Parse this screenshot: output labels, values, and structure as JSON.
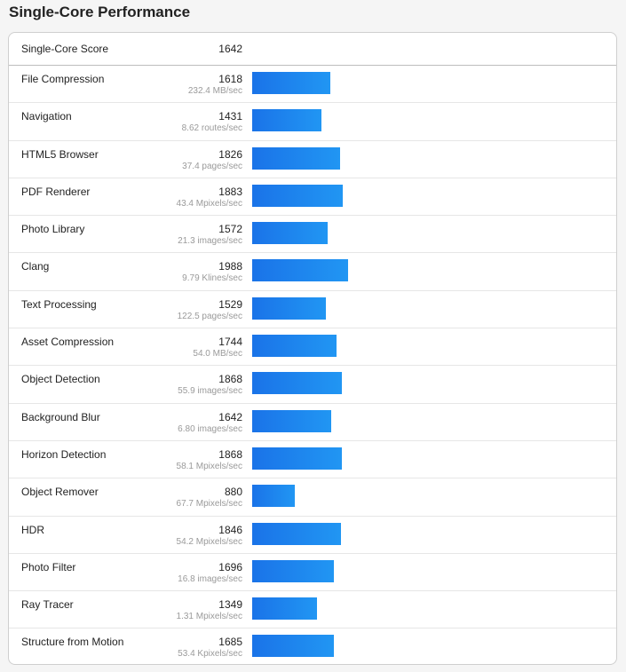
{
  "title": "Single-Core Performance",
  "score": {
    "label": "Single-Core Score",
    "value": "1642"
  },
  "bar_scale_max": 1988,
  "accent_color": "#1a73e8",
  "rows": [
    {
      "name": "File Compression",
      "value": "1618",
      "rate": "232.4 MB/sec",
      "score": 1618
    },
    {
      "name": "Navigation",
      "value": "1431",
      "rate": "8.62 routes/sec",
      "score": 1431
    },
    {
      "name": "HTML5 Browser",
      "value": "1826",
      "rate": "37.4 pages/sec",
      "score": 1826
    },
    {
      "name": "PDF Renderer",
      "value": "1883",
      "rate": "43.4 Mpixels/sec",
      "score": 1883
    },
    {
      "name": "Photo Library",
      "value": "1572",
      "rate": "21.3 images/sec",
      "score": 1572
    },
    {
      "name": "Clang",
      "value": "1988",
      "rate": "9.79 Klines/sec",
      "score": 1988
    },
    {
      "name": "Text Processing",
      "value": "1529",
      "rate": "122.5 pages/sec",
      "score": 1529
    },
    {
      "name": "Asset Compression",
      "value": "1744",
      "rate": "54.0 MB/sec",
      "score": 1744
    },
    {
      "name": "Object Detection",
      "value": "1868",
      "rate": "55.9 images/sec",
      "score": 1868
    },
    {
      "name": "Background Blur",
      "value": "1642",
      "rate": "6.80 images/sec",
      "score": 1642
    },
    {
      "name": "Horizon Detection",
      "value": "1868",
      "rate": "58.1 Mpixels/sec",
      "score": 1868
    },
    {
      "name": "Object Remover",
      "value": "880",
      "rate": "67.7 Mpixels/sec",
      "score": 880
    },
    {
      "name": "HDR",
      "value": "1846",
      "rate": "54.2 Mpixels/sec",
      "score": 1846
    },
    {
      "name": "Photo Filter",
      "value": "1696",
      "rate": "16.8 images/sec",
      "score": 1696
    },
    {
      "name": "Ray Tracer",
      "value": "1349",
      "rate": "1.31 Mpixels/sec",
      "score": 1349
    },
    {
      "name": "Structure from Motion",
      "value": "1685",
      "rate": "53.4 Kpixels/sec",
      "score": 1685
    }
  ]
}
